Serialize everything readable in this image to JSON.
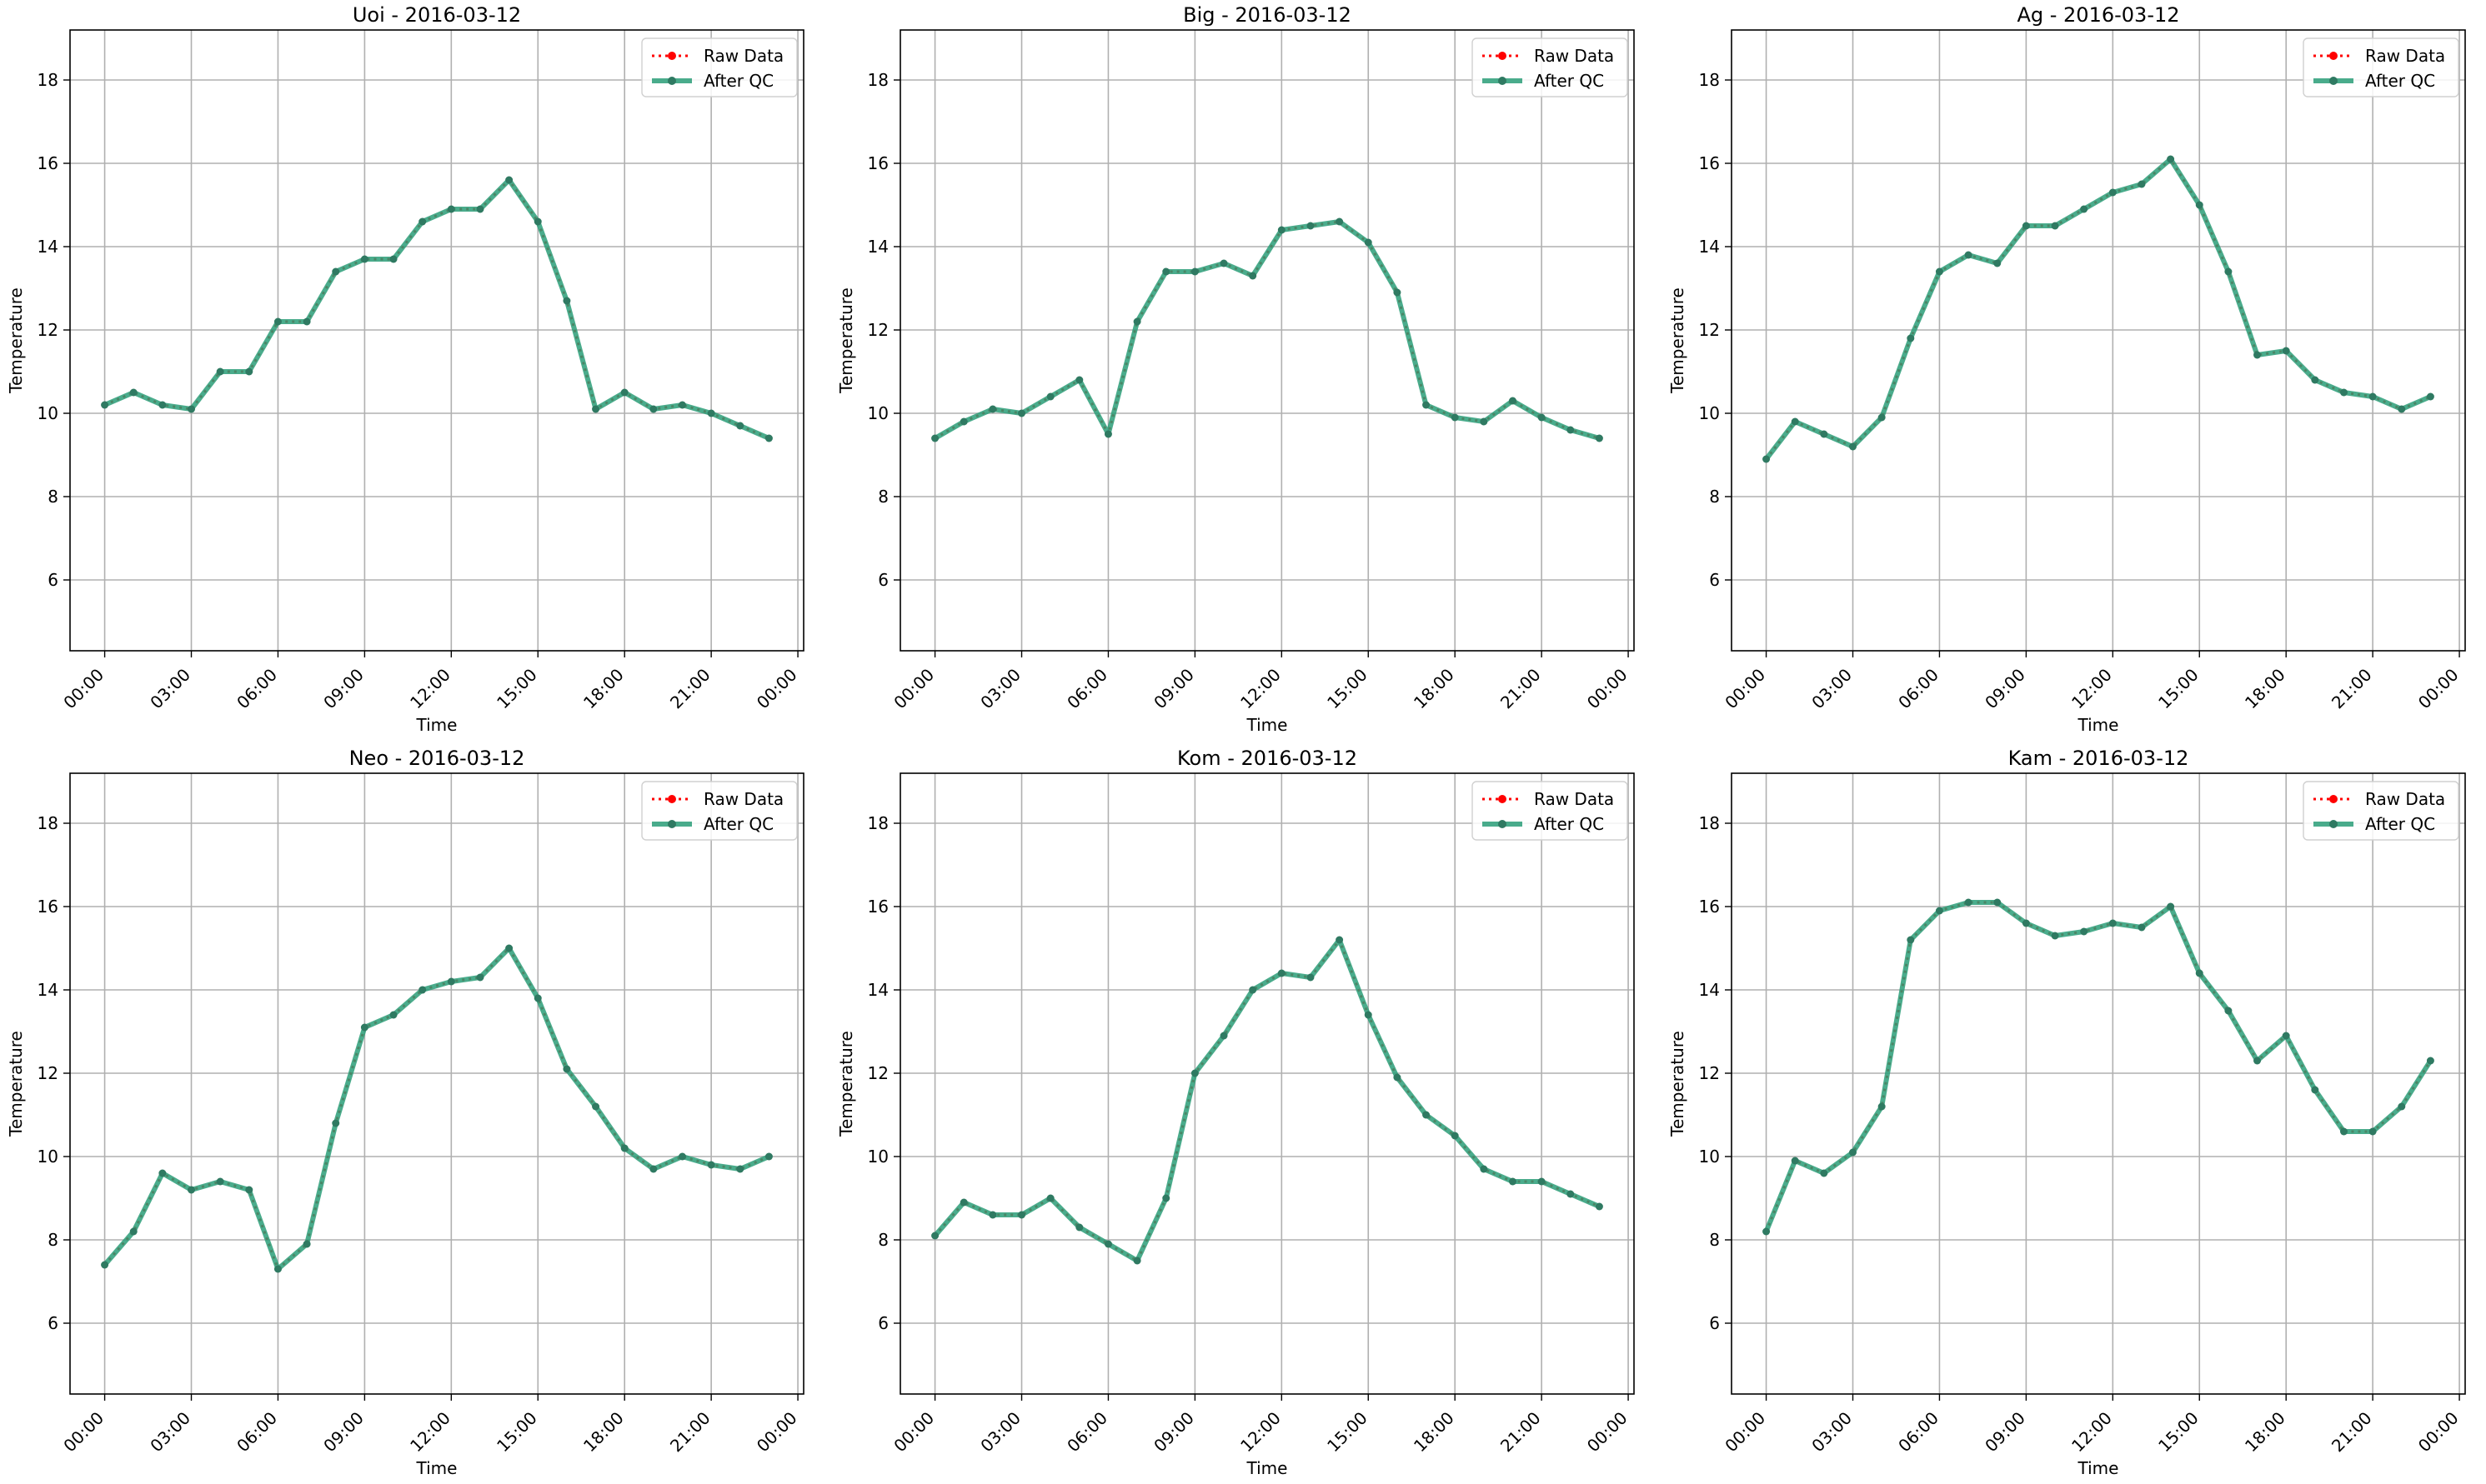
{
  "figure": {
    "legend_location": "upper-right",
    "grid": true,
    "colors": {
      "raw": "#ff0000",
      "qc": "#2a9d78",
      "qc_marker": "#2f7a62",
      "grid": "#b0b0b0"
    }
  },
  "chart_data": [
    {
      "type": "line",
      "title": "Uoi - 2016-03-12",
      "xlabel": "Time",
      "ylabel": "Temperature",
      "x_ticks": [
        "00:00",
        "03:00",
        "06:00",
        "09:00",
        "12:00",
        "15:00",
        "18:00",
        "21:00",
        "00:00"
      ],
      "y_ticks": [
        6,
        8,
        10,
        12,
        14,
        16,
        18
      ],
      "xlim": [
        -1.2,
        24.2
      ],
      "ylim": [
        4.3,
        19.2
      ],
      "x_hours": [
        0,
        1,
        2,
        3,
        4,
        5,
        6,
        7,
        8,
        9,
        10,
        11,
        12,
        13,
        14,
        15,
        16,
        17,
        18,
        19,
        20,
        21,
        22,
        23
      ],
      "series": [
        {
          "name": "Raw Data",
          "style": "dotted",
          "values": [
            10.2,
            10.5,
            10.2,
            10.1,
            11.0,
            11.0,
            12.2,
            12.2,
            13.4,
            13.7,
            13.7,
            14.6,
            14.9,
            14.9,
            15.6,
            14.6,
            12.7,
            10.1,
            10.5,
            10.1,
            10.2,
            10.0,
            9.7,
            9.4
          ]
        },
        {
          "name": "After QC",
          "style": "solid",
          "values": [
            10.2,
            10.5,
            10.2,
            10.1,
            11.0,
            11.0,
            12.2,
            12.2,
            13.4,
            13.7,
            13.7,
            14.6,
            14.9,
            14.9,
            15.6,
            14.6,
            12.7,
            10.1,
            10.5,
            10.1,
            10.2,
            10.0,
            9.7,
            9.4
          ]
        }
      ]
    },
    {
      "type": "line",
      "title": "Big - 2016-03-12",
      "xlabel": "Time",
      "ylabel": "Temperature",
      "x_ticks": [
        "00:00",
        "03:00",
        "06:00",
        "09:00",
        "12:00",
        "15:00",
        "18:00",
        "21:00",
        "00:00"
      ],
      "y_ticks": [
        6,
        8,
        10,
        12,
        14,
        16,
        18
      ],
      "xlim": [
        -1.2,
        24.2
      ],
      "ylim": [
        4.3,
        19.2
      ],
      "x_hours": [
        0,
        1,
        2,
        3,
        4,
        5,
        6,
        7,
        8,
        9,
        10,
        11,
        12,
        13,
        14,
        15,
        16,
        17,
        18,
        19,
        20,
        21,
        22,
        23
      ],
      "series": [
        {
          "name": "Raw Data",
          "style": "dotted",
          "values": [
            9.4,
            9.8,
            10.1,
            10.0,
            10.4,
            10.8,
            9.5,
            12.2,
            13.4,
            13.4,
            13.6,
            13.3,
            14.4,
            14.5,
            14.6,
            14.1,
            12.9,
            10.2,
            9.9,
            9.8,
            10.3,
            9.9,
            9.6,
            9.4
          ]
        },
        {
          "name": "After QC",
          "style": "solid",
          "values": [
            9.4,
            9.8,
            10.1,
            10.0,
            10.4,
            10.8,
            9.5,
            12.2,
            13.4,
            13.4,
            13.6,
            13.3,
            14.4,
            14.5,
            14.6,
            14.1,
            12.9,
            10.2,
            9.9,
            9.8,
            10.3,
            9.9,
            9.6,
            9.4
          ]
        }
      ]
    },
    {
      "type": "line",
      "title": "Ag - 2016-03-12",
      "xlabel": "Time",
      "ylabel": "Temperature",
      "x_ticks": [
        "00:00",
        "03:00",
        "06:00",
        "09:00",
        "12:00",
        "15:00",
        "18:00",
        "21:00",
        "00:00"
      ],
      "y_ticks": [
        6,
        8,
        10,
        12,
        14,
        16,
        18
      ],
      "xlim": [
        -1.2,
        24.2
      ],
      "ylim": [
        4.3,
        19.2
      ],
      "x_hours": [
        0,
        1,
        2,
        3,
        4,
        5,
        6,
        7,
        8,
        9,
        10,
        11,
        12,
        13,
        14,
        15,
        16,
        17,
        18,
        19,
        20,
        21,
        22,
        23
      ],
      "series": [
        {
          "name": "Raw Data",
          "style": "dotted",
          "values": [
            8.9,
            9.8,
            9.5,
            9.2,
            9.9,
            11.8,
            13.4,
            13.8,
            13.6,
            14.5,
            14.5,
            14.9,
            15.3,
            15.5,
            16.1,
            15.0,
            13.4,
            11.4,
            11.5,
            10.8,
            10.5,
            10.4,
            10.1,
            10.4
          ]
        },
        {
          "name": "After QC",
          "style": "solid",
          "values": [
            8.9,
            9.8,
            9.5,
            9.2,
            9.9,
            11.8,
            13.4,
            13.8,
            13.6,
            14.5,
            14.5,
            14.9,
            15.3,
            15.5,
            16.1,
            15.0,
            13.4,
            11.4,
            11.5,
            10.8,
            10.5,
            10.4,
            10.1,
            10.4
          ]
        }
      ]
    },
    {
      "type": "line",
      "title": "Neo - 2016-03-12",
      "xlabel": "Time",
      "ylabel": "Temperature",
      "x_ticks": [
        "00:00",
        "03:00",
        "06:00",
        "09:00",
        "12:00",
        "15:00",
        "18:00",
        "21:00",
        "00:00"
      ],
      "y_ticks": [
        6,
        8,
        10,
        12,
        14,
        16,
        18
      ],
      "xlim": [
        -1.2,
        24.2
      ],
      "ylim": [
        4.3,
        19.2
      ],
      "x_hours": [
        0,
        1,
        2,
        3,
        4,
        5,
        6,
        7,
        8,
        9,
        10,
        11,
        12,
        13,
        14,
        15,
        16,
        17,
        18,
        19,
        20,
        21,
        22,
        23
      ],
      "series": [
        {
          "name": "Raw Data",
          "style": "dotted",
          "values": [
            7.4,
            8.2,
            9.6,
            9.2,
            9.4,
            9.2,
            7.3,
            7.9,
            10.8,
            13.1,
            13.4,
            14.0,
            14.2,
            14.3,
            15.0,
            13.8,
            12.1,
            11.2,
            10.2,
            9.7,
            10.0,
            9.8,
            9.7,
            10.0
          ]
        },
        {
          "name": "After QC",
          "style": "solid",
          "values": [
            7.4,
            8.2,
            9.6,
            9.2,
            9.4,
            9.2,
            7.3,
            7.9,
            10.8,
            13.1,
            13.4,
            14.0,
            14.2,
            14.3,
            15.0,
            13.8,
            12.1,
            11.2,
            10.2,
            9.7,
            10.0,
            9.8,
            9.7,
            10.0
          ]
        }
      ]
    },
    {
      "type": "line",
      "title": "Kom - 2016-03-12",
      "xlabel": "Time",
      "ylabel": "Temperature",
      "x_ticks": [
        "00:00",
        "03:00",
        "06:00",
        "09:00",
        "12:00",
        "15:00",
        "18:00",
        "21:00",
        "00:00"
      ],
      "y_ticks": [
        6,
        8,
        10,
        12,
        14,
        16,
        18
      ],
      "xlim": [
        -1.2,
        24.2
      ],
      "ylim": [
        4.3,
        19.2
      ],
      "x_hours": [
        0,
        1,
        2,
        3,
        4,
        5,
        6,
        7,
        8,
        9,
        10,
        11,
        12,
        13,
        14,
        15,
        16,
        17,
        18,
        19,
        20,
        21,
        22,
        23
      ],
      "series": [
        {
          "name": "Raw Data",
          "style": "dotted",
          "values": [
            8.1,
            8.9,
            8.6,
            8.6,
            9.0,
            8.3,
            7.9,
            7.5,
            9.0,
            12.0,
            12.9,
            14.0,
            14.4,
            14.3,
            15.2,
            13.4,
            11.9,
            11.0,
            10.5,
            9.7,
            9.4,
            9.4,
            9.1,
            8.8
          ]
        },
        {
          "name": "After QC",
          "style": "solid",
          "values": [
            8.1,
            8.9,
            8.6,
            8.6,
            9.0,
            8.3,
            7.9,
            7.5,
            9.0,
            12.0,
            12.9,
            14.0,
            14.4,
            14.3,
            15.2,
            13.4,
            11.9,
            11.0,
            10.5,
            9.7,
            9.4,
            9.4,
            9.1,
            8.8
          ]
        }
      ]
    },
    {
      "type": "line",
      "title": "Kam - 2016-03-12",
      "xlabel": "Time",
      "ylabel": "Temperature",
      "x_ticks": [
        "00:00",
        "03:00",
        "06:00",
        "09:00",
        "12:00",
        "15:00",
        "18:00",
        "21:00",
        "00:00"
      ],
      "y_ticks": [
        6,
        8,
        10,
        12,
        14,
        16,
        18
      ],
      "xlim": [
        -1.2,
        24.2
      ],
      "ylim": [
        4.3,
        19.2
      ],
      "x_hours": [
        0,
        1,
        2,
        3,
        4,
        5,
        6,
        7,
        8,
        9,
        10,
        11,
        12,
        13,
        14,
        15,
        16,
        17,
        18,
        19,
        20,
        21,
        22,
        23
      ],
      "series": [
        {
          "name": "Raw Data",
          "style": "dotted",
          "values": [
            8.2,
            9.9,
            9.6,
            10.1,
            11.2,
            15.2,
            15.9,
            16.1,
            16.1,
            15.6,
            15.3,
            15.4,
            15.6,
            15.5,
            16.0,
            14.4,
            13.5,
            12.3,
            12.9,
            11.6,
            10.6,
            10.6,
            11.2,
            12.3
          ]
        },
        {
          "name": "After QC",
          "style": "solid",
          "values": [
            8.2,
            9.9,
            9.6,
            10.1,
            11.2,
            15.2,
            15.9,
            16.1,
            16.1,
            15.6,
            15.3,
            15.4,
            15.6,
            15.5,
            16.0,
            14.4,
            13.5,
            12.3,
            12.9,
            11.6,
            10.6,
            10.6,
            11.2,
            12.3
          ]
        }
      ]
    }
  ]
}
